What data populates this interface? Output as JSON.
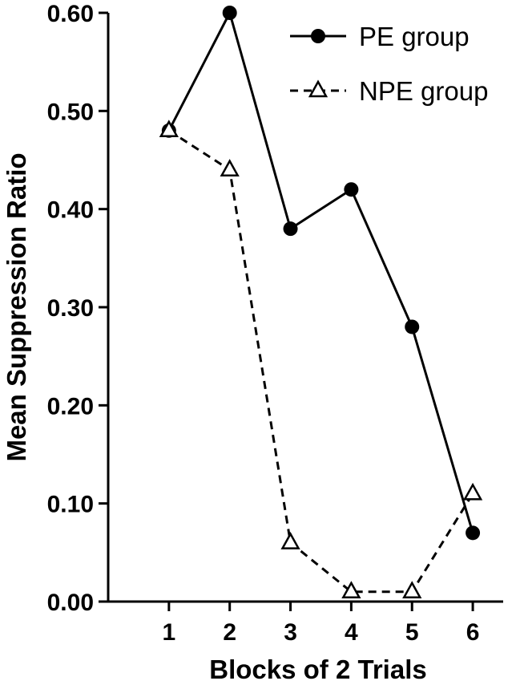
{
  "chart_data": {
    "type": "line",
    "title": "",
    "xlabel": "Blocks of 2 Trials",
    "ylabel": "Mean Suppression Ratio",
    "x": [
      1,
      2,
      3,
      4,
      5,
      6
    ],
    "xticks": [
      "1",
      "2",
      "3",
      "4",
      "5",
      "6"
    ],
    "xlim": [
      0,
      6.5
    ],
    "ylim": [
      0,
      0.6
    ],
    "yticks": [
      "0.00",
      "0.10",
      "0.20",
      "0.30",
      "0.40",
      "0.50",
      "0.60"
    ],
    "grid": false,
    "legend_position": "top-right",
    "series": [
      {
        "name": "PE group",
        "values": [
          0.48,
          0.6,
          0.38,
          0.42,
          0.28,
          0.07
        ],
        "line_style": "solid",
        "marker": "filled-circle",
        "color": "#000000"
      },
      {
        "name": "NPE group",
        "values": [
          0.48,
          0.44,
          0.06,
          0.01,
          0.01,
          0.11
        ],
        "line_style": "dashed",
        "marker": "open-triangle",
        "color": "#000000"
      }
    ]
  }
}
